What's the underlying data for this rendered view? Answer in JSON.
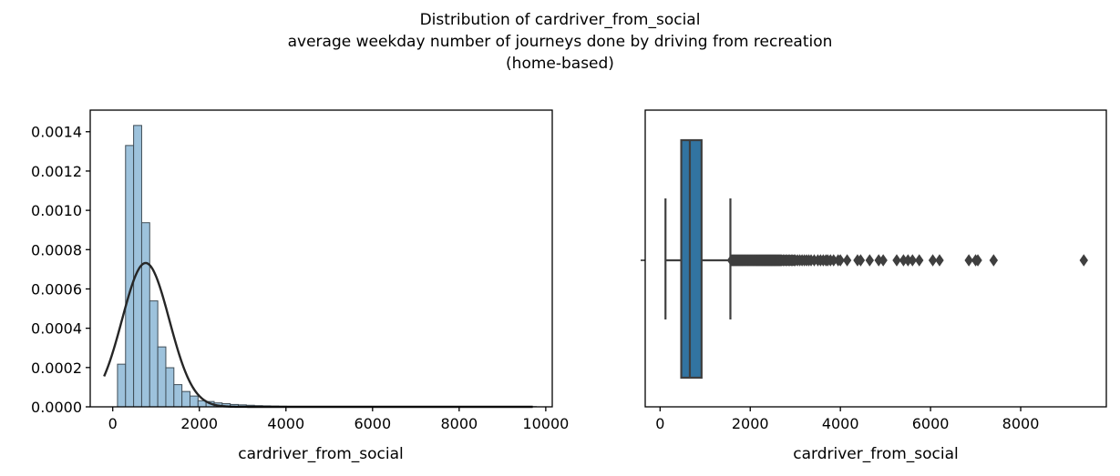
{
  "figure": {
    "title_lines": [
      "Distribution of cardriver_from_social",
      "average weekday number of journeys done by driving from recreation",
      "(home-based)"
    ]
  },
  "colors": {
    "hist_fill": "#9dc2dc",
    "hist_edge": "#3f4d57",
    "kde_line": "#262626",
    "box_fill": "#3274a1",
    "box_line": "#3f3f3f"
  },
  "chart_data": [
    {
      "type": "histogram",
      "xlabel": "cardriver_from_social",
      "ylabel": "",
      "xlim": [
        -520,
        10150
      ],
      "ylim": [
        0,
        0.00151
      ],
      "xticks": [
        0,
        2000,
        4000,
        6000,
        8000,
        10000
      ],
      "xtick_labels": [
        "0",
        "2000",
        "4000",
        "6000",
        "8000",
        "10000"
      ],
      "yticks": [
        0,
        0.0002,
        0.0004,
        0.0006,
        0.0008,
        0.001,
        0.0012,
        0.0014
      ],
      "ytick_labels": [
        "0.0000",
        "0.0002",
        "0.0004",
        "0.0006",
        "0.0008",
        "0.0010",
        "0.0012",
        "0.0014"
      ],
      "bin_start": 110,
      "bin_width": 186,
      "density": [
        0.000217,
        0.00133,
        0.001432,
        0.000937,
        0.000539,
        0.000305,
        0.000199,
        0.000113,
        7.8e-05,
        5.5e-05,
        3.1e-05,
        2.7e-05,
        2e-05,
        1.6e-05,
        1.2e-05,
        1e-05,
        8e-06,
        6e-06,
        5e-06,
        4e-06,
        3e-06,
        2e-06,
        2e-06,
        2e-06,
        2e-06,
        1e-06,
        1e-06,
        1e-06,
        1e-06,
        1e-06,
        1e-06,
        1e-06,
        1e-06,
        1e-06,
        1e-06,
        1e-06,
        1e-06,
        1e-06,
        1e-06,
        1e-06,
        1e-06,
        1e-06,
        1e-06,
        1e-06,
        1e-06,
        1e-06,
        1e-06,
        1e-06,
        1e-06,
        1e-06,
        1e-06,
        1e-06
      ],
      "fit_curve": {
        "kind": "normal",
        "mean": 760,
        "sd": 545,
        "x_range": [
          -200,
          9700
        ]
      }
    },
    {
      "type": "boxplot",
      "xlabel": "cardriver_from_social",
      "xlim": [
        -330,
        9900
      ],
      "xticks": [
        0,
        2000,
        4000,
        6000,
        8000
      ],
      "xtick_labels": [
        "0",
        "2000",
        "4000",
        "6000",
        "8000"
      ],
      "whisker_low": 120,
      "q1": 470,
      "median": 660,
      "q3": 920,
      "whisker_high": 1560,
      "outliers": [
        1580,
        1600,
        1620,
        1640,
        1660,
        1680,
        1700,
        1720,
        1740,
        1760,
        1780,
        1800,
        1820,
        1840,
        1860,
        1880,
        1900,
        1920,
        1940,
        1960,
        1980,
        2000,
        2020,
        2040,
        2060,
        2080,
        2100,
        2120,
        2140,
        2160,
        2180,
        2200,
        2220,
        2240,
        2260,
        2280,
        2300,
        2320,
        2340,
        2360,
        2380,
        2400,
        2420,
        2440,
        2460,
        2480,
        2500,
        2520,
        2540,
        2560,
        2580,
        2600,
        2620,
        2640,
        2660,
        2680,
        2700,
        2730,
        2760,
        2790,
        2820,
        2850,
        2880,
        2910,
        2940,
        2970,
        3000,
        3050,
        3100,
        3150,
        3200,
        3250,
        3300,
        3350,
        3420,
        3500,
        3560,
        3620,
        3680,
        3720,
        3780,
        3850,
        3950,
        4000,
        4150,
        4380,
        4450,
        4650,
        4850,
        4950,
        5250,
        5400,
        5500,
        5600,
        5750,
        6050,
        6200,
        6850,
        7000,
        7050,
        7400,
        9400
      ]
    }
  ]
}
